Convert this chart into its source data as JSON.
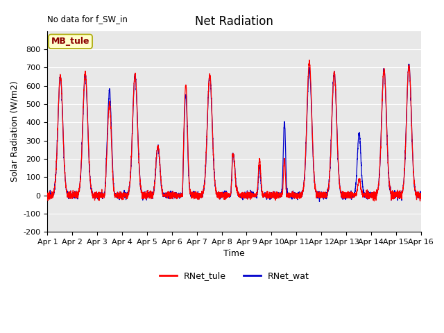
{
  "title": "Net Radiation",
  "annotation": "No data for f_SW_in",
  "legend_box_label": "MB_tule",
  "xlabel": "Time",
  "ylabel": "Solar Radiation (W/m2)",
  "ylim": [
    -200,
    900
  ],
  "yticks": [
    -200,
    -100,
    0,
    100,
    200,
    300,
    400,
    500,
    600,
    700,
    800
  ],
  "x_tick_labels": [
    "Apr 1",
    "Apr 2",
    "Apr 3",
    "Apr 4",
    "Apr 5",
    "Apr 6",
    "Apr 7",
    "Apr 8",
    "Apr 9",
    "Apr 10",
    "Apr 11",
    "Apr 12",
    "Apr 13",
    "Apr 14",
    "Apr 15",
    "Apr 16"
  ],
  "line1_color": "#ff0000",
  "line2_color": "#0000cc",
  "line1_label": "RNet_tule",
  "line2_label": "RNet_wat",
  "legend_box_color": "#ffffcc",
  "legend_box_edge": "#aaa800",
  "background_color": "#e8e8e8",
  "title_fontsize": 12,
  "axis_fontsize": 9,
  "tick_fontsize": 8,
  "n_per_day": 288,
  "n_days": 15,
  "night_base": -70,
  "night_noise": 15
}
